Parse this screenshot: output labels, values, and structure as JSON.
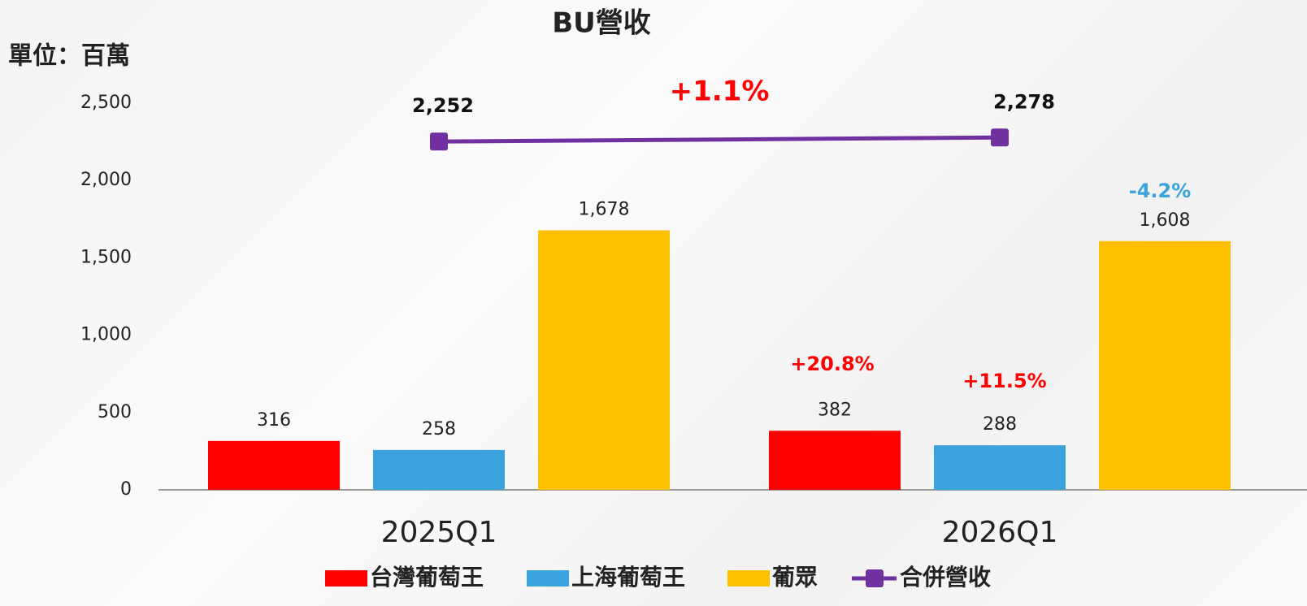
{
  "chart_data": {
    "type": "bar-line",
    "title": "BU營收",
    "unit_label": "單位：百萬",
    "categories": [
      "2025Q1",
      "2026Q1"
    ],
    "series": [
      {
        "name": "台灣葡萄王",
        "color": "#ff0000",
        "values": [
          316,
          382
        ],
        "value_labels": [
          "316",
          "382"
        ]
      },
      {
        "name": "上海葡萄王",
        "color": "#3aa2dc",
        "values": [
          258,
          288
        ],
        "value_labels": [
          "258",
          "288"
        ]
      },
      {
        "name": "葡眾",
        "color": "#ffc000",
        "values": [
          1678,
          1608
        ],
        "value_labels": [
          "1,678",
          "1,608"
        ]
      },
      {
        "name": "合併營收",
        "type": "line",
        "color": "#7030a0",
        "values": [
          2252,
          2278
        ],
        "value_labels": [
          "2,252",
          "2,278"
        ]
      }
    ],
    "annotations": [
      "+1.1%",
      "+20.8%",
      "+11.5%",
      "-4.2%"
    ],
    "ylim": [
      0,
      2500
    ],
    "yticks": [
      0,
      500,
      {
        "value": 1000,
        "label": "1,000"
      },
      {
        "value": 1500,
        "label": "1,500"
      },
      {
        "value": 2000,
        "label": "2,000"
      },
      {
        "value": 2500,
        "label": "2,500"
      }
    ],
    "legend": "bottom"
  }
}
